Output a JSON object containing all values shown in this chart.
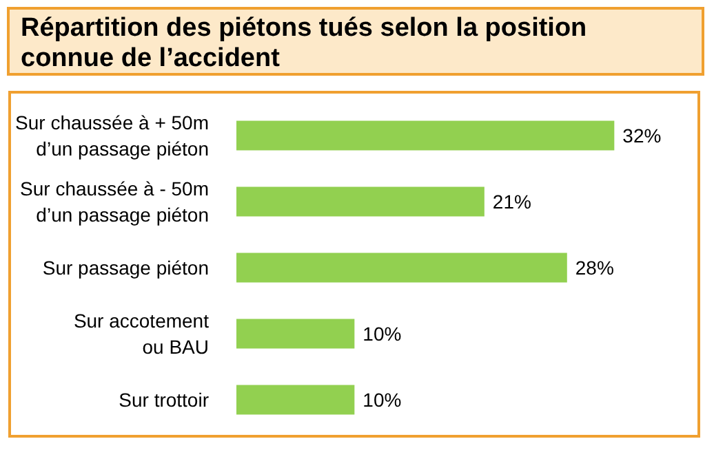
{
  "chart_data": {
    "type": "bar",
    "orientation": "horizontal",
    "title": "Répartition des piétons tués selon la position\nconnue de l’accident",
    "categories": [
      "Sur chaussée à + 50m\nd’un passage piéton",
      "Sur chaussée à - 50m\nd’un passage piéton",
      "Sur passage piéton",
      "Sur accotement\nou BAU",
      "Sur trottoir"
    ],
    "values": [
      32,
      21,
      28,
      10,
      10
    ],
    "value_labels": [
      "32%",
      "21%",
      "28%",
      "10%",
      "10%"
    ],
    "color": "#92d050"
  }
}
